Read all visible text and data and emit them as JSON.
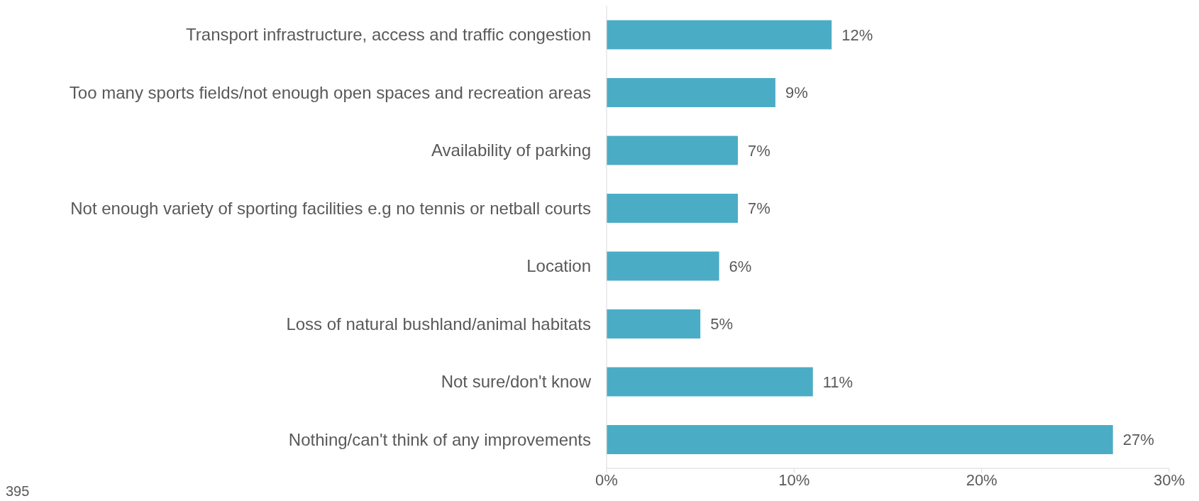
{
  "chart_data": {
    "type": "bar",
    "orientation": "horizontal",
    "categories": [
      "Transport infrastructure, access and traffic congestion",
      "Too many sports fields/not enough open spaces and recreation areas",
      "Availability of parking",
      "Not enough variety of sporting facilities e.g no tennis or netball courts",
      "Location",
      "Loss of natural bushland/animal habitats",
      "Not sure/don't know",
      "Nothing/can't think of any improvements"
    ],
    "values": [
      12,
      9,
      7,
      7,
      6,
      5,
      11,
      27
    ],
    "value_labels": [
      "12%",
      "9%",
      "7%",
      "7%",
      "6%",
      "5%",
      "11%",
      "27%"
    ],
    "color": "#4bacc6",
    "xlim": [
      0,
      30
    ],
    "xticks": [
      {
        "value": 0,
        "label": "0%"
      },
      {
        "value": 10,
        "label": "10%"
      },
      {
        "value": 20,
        "label": "20%"
      },
      {
        "value": 30,
        "label": "30%"
      }
    ],
    "grid": false,
    "legend": false,
    "annotations": [
      "395"
    ]
  }
}
